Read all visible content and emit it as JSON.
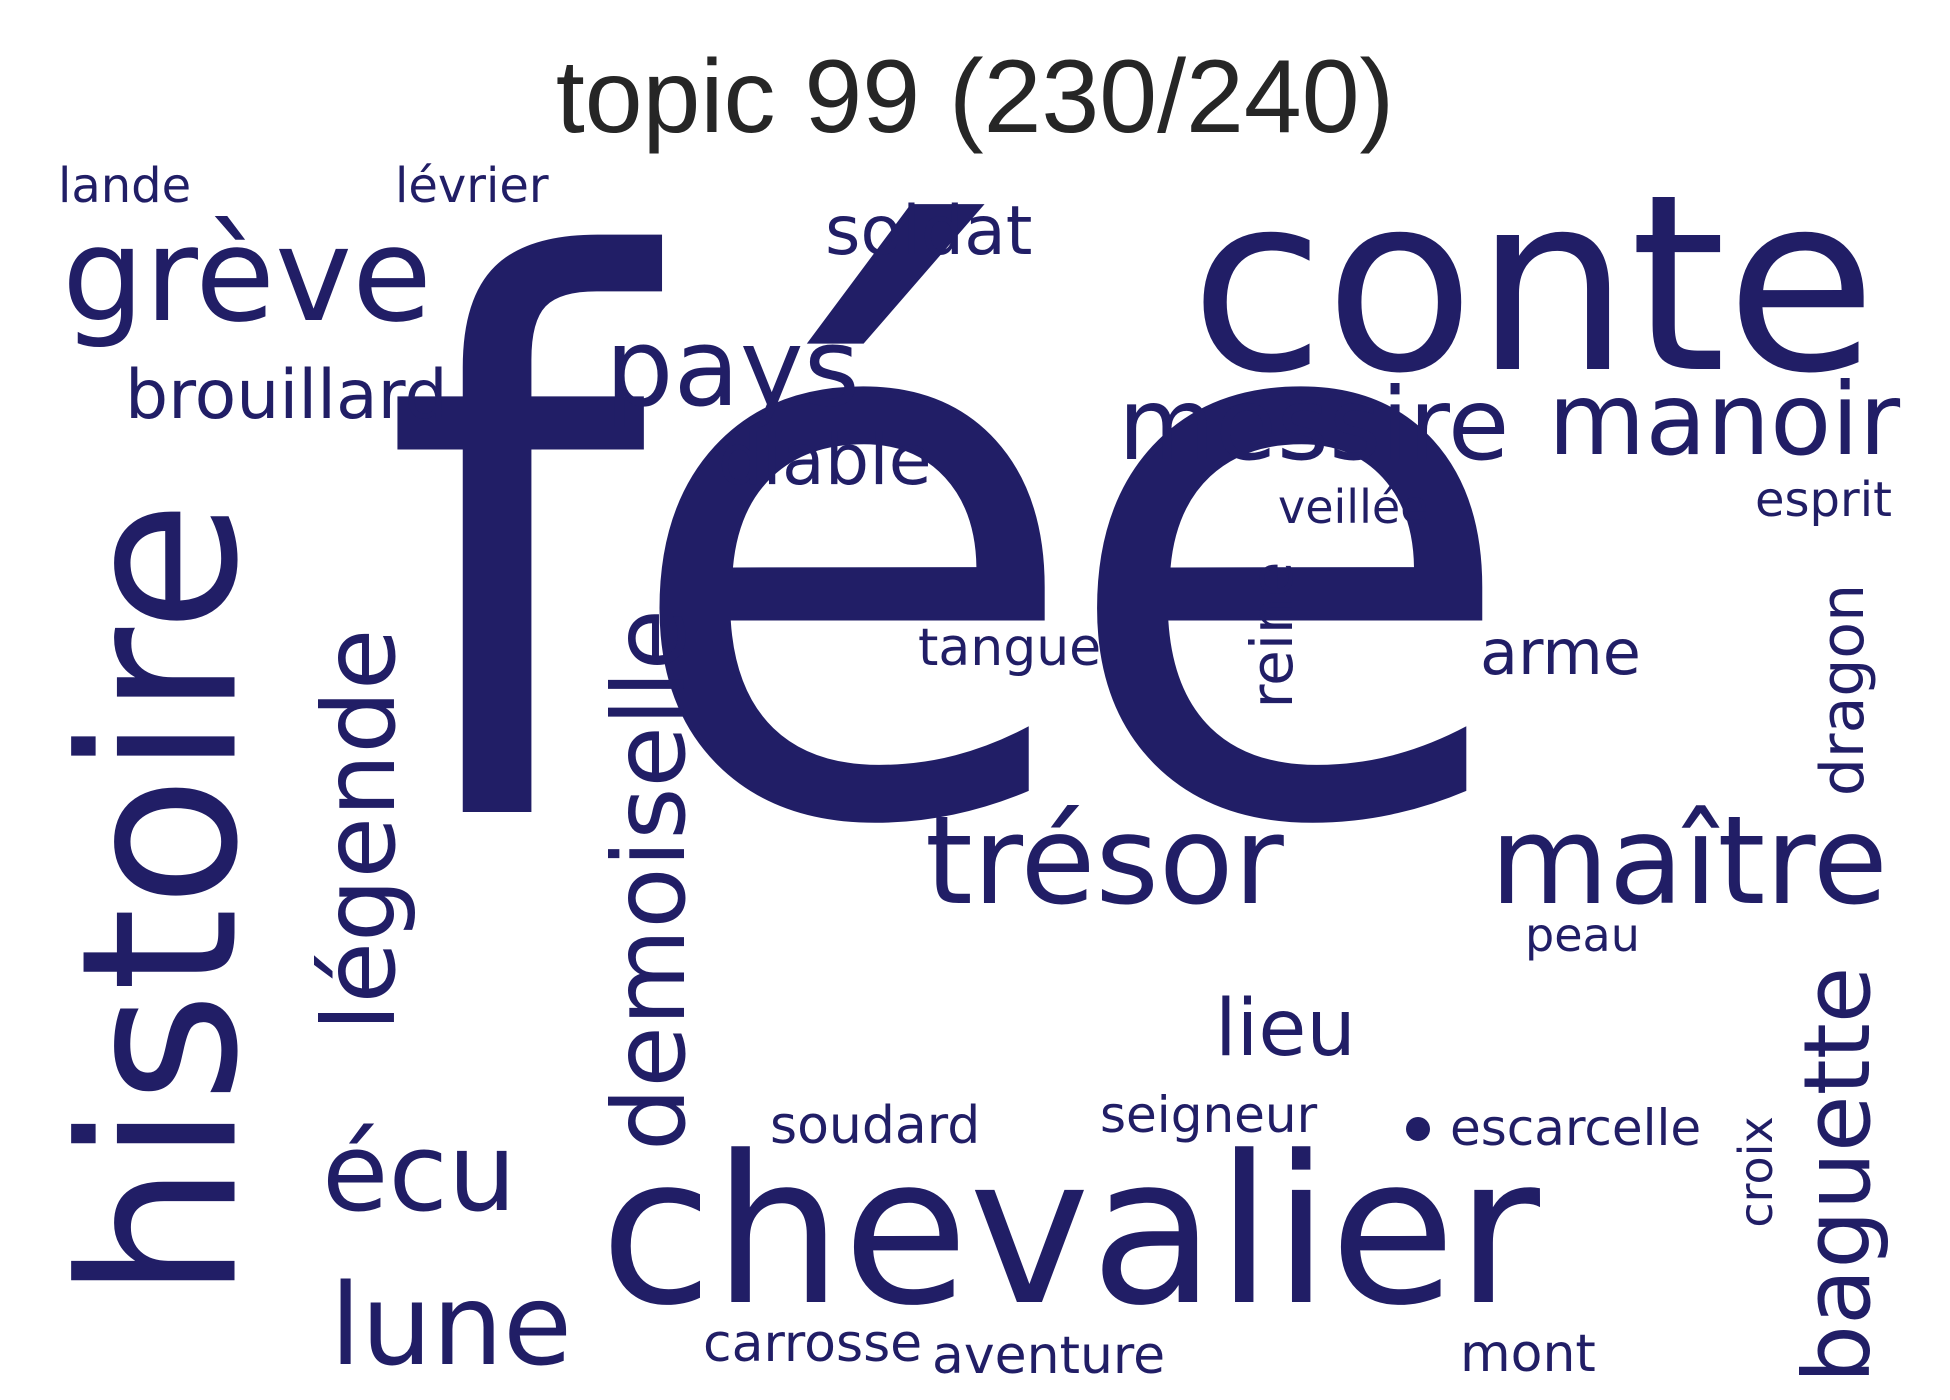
{
  "title": "topic 99 (230/240)",
  "color": "#211e66",
  "words": {
    "fee": "fée",
    "conte": "conte",
    "chevalier": "chevalier",
    "histoire": "histoire",
    "greve": "grève",
    "tresor": "trésor",
    "maitre": "maître",
    "messire": "messire",
    "manoir": "manoir",
    "pays": "pays",
    "demoiselle": "demoiselle",
    "legende": "légende",
    "lune": "lune",
    "ecu": "écu",
    "baguette": "baguette",
    "brouillard": "brouillard",
    "diable": "diable",
    "soldat": "soldat",
    "lande": "lande",
    "levrier": "lévrier",
    "veillee": "veillée",
    "esprit": "esprit",
    "tangue": "tangue",
    "reine": "reine",
    "arme": "arme",
    "dragon": "dragon",
    "peau": "peau",
    "lieu": "lieu",
    "soudard": "soudard",
    "seigneur": "seigneur",
    "escarcelle": "escarcelle",
    "croix": "croix",
    "carrosse": "carrosse",
    "aventure": "aventure",
    "mont": "mont"
  }
}
